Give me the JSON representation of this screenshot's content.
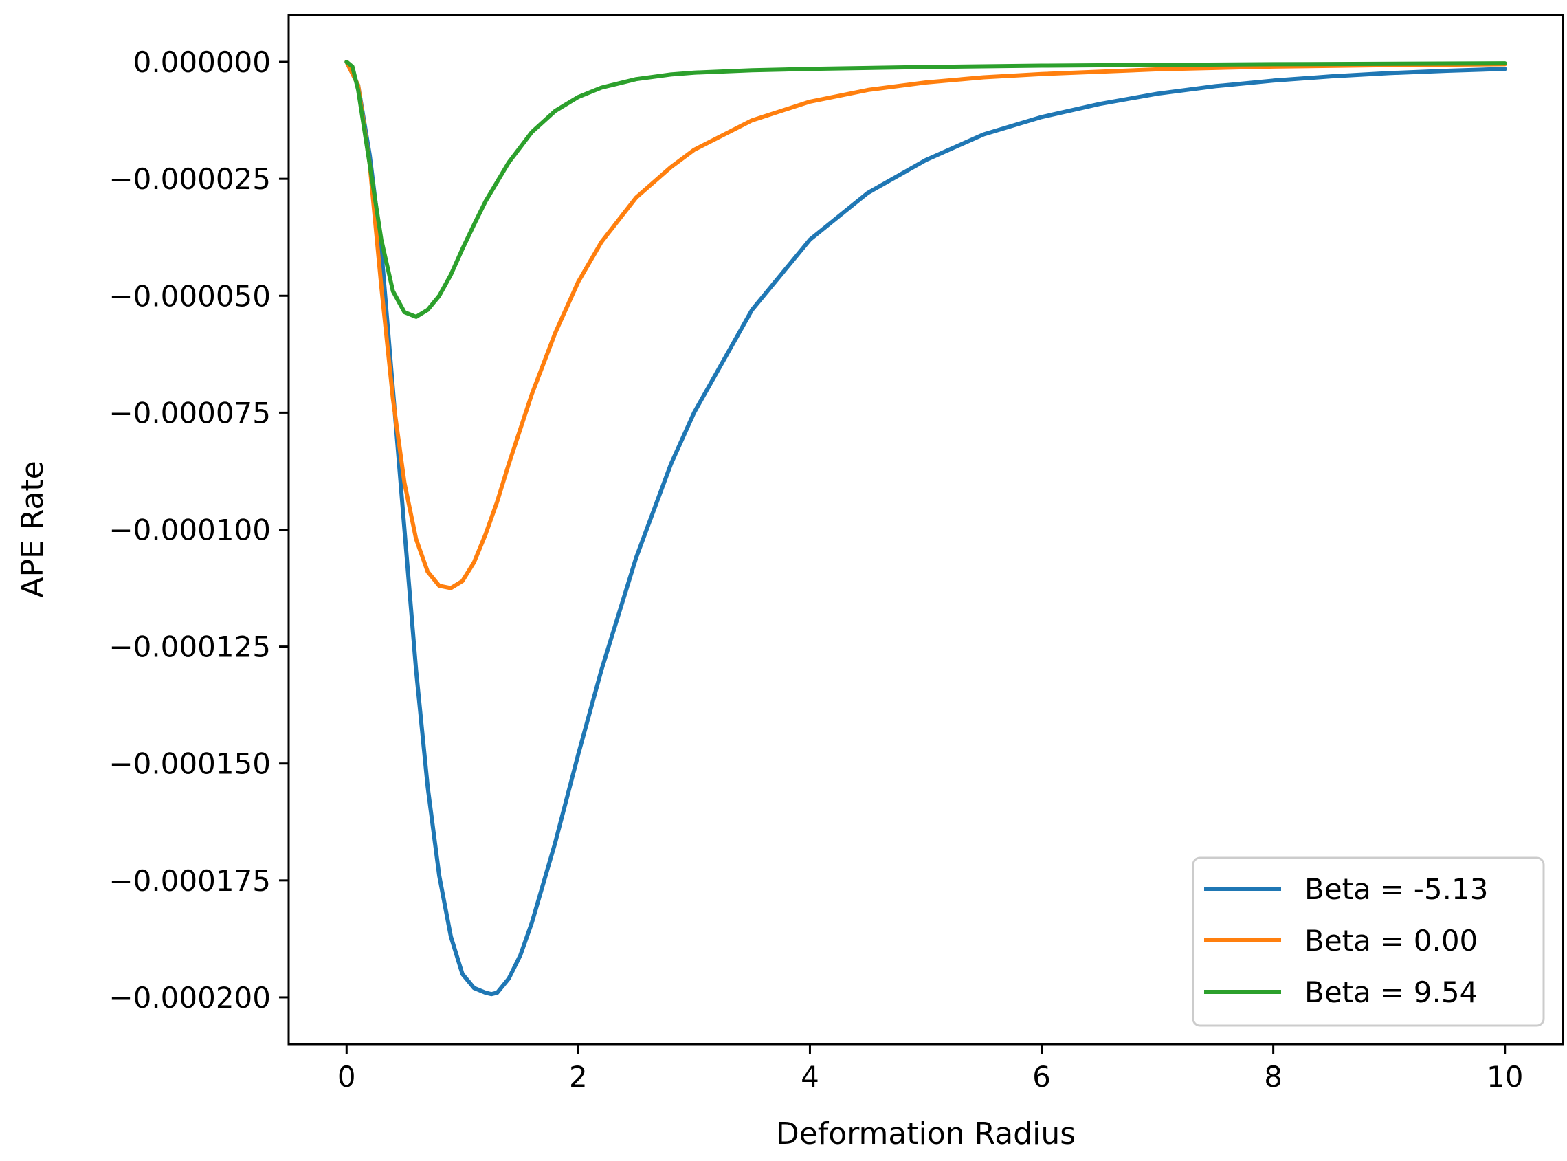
{
  "chart_data": {
    "type": "line",
    "title": "",
    "xlabel": "Deformation Radius",
    "ylabel": "APE Rate",
    "xlim": [
      -0.5,
      10.5
    ],
    "ylim": [
      -0.00021,
      1e-05
    ],
    "xticks": [
      0,
      2,
      4,
      6,
      8,
      10
    ],
    "xtick_labels": [
      "0",
      "2",
      "4",
      "6",
      "8",
      "10"
    ],
    "yticks": [
      0,
      -2.5e-05,
      -5e-05,
      -7.5e-05,
      -0.0001,
      -0.000125,
      -0.00015,
      -0.000175,
      -0.0002
    ],
    "ytick_labels": [
      "0.000000",
      "−0.000025",
      "−0.000050",
      "−0.000075",
      "−0.000100",
      "−0.000125",
      "−0.000150",
      "−0.000175",
      "−0.000200"
    ],
    "grid": false,
    "legend_position": "lower-right",
    "series": [
      {
        "name": "Beta = -5.13",
        "color": "#1f77b4",
        "x": [
          0,
          0.1,
          0.2,
          0.3,
          0.4,
          0.5,
          0.6,
          0.7,
          0.8,
          0.9,
          1.0,
          1.1,
          1.2,
          1.25,
          1.3,
          1.4,
          1.5,
          1.6,
          1.8,
          2.0,
          2.2,
          2.5,
          2.8,
          3.0,
          3.5,
          4.0,
          4.5,
          5.0,
          5.5,
          6.0,
          6.5,
          7.0,
          7.5,
          8.0,
          8.5,
          9.0,
          9.5,
          10.0
        ],
        "y": [
          0,
          -5e-06,
          -2e-05,
          -4e-05,
          -7e-05,
          -0.0001,
          -0.00013,
          -0.000155,
          -0.000174,
          -0.000187,
          -0.000195,
          -0.000198,
          -0.000199,
          -0.0001993,
          -0.000199,
          -0.000196,
          -0.000191,
          -0.000184,
          -0.000167,
          -0.000148,
          -0.00013,
          -0.000106,
          -8.6e-05,
          -7.5e-05,
          -5.3e-05,
          -3.8e-05,
          -2.8e-05,
          -2.1e-05,
          -1.55e-05,
          -1.18e-05,
          -9e-06,
          -6.8e-06,
          -5.2e-06,
          -4e-06,
          -3.1e-06,
          -2.4e-06,
          -1.9e-06,
          -1.5e-06
        ]
      },
      {
        "name": "Beta = 0.00",
        "color": "#ff7f0e",
        "x": [
          0,
          0.1,
          0.2,
          0.3,
          0.4,
          0.5,
          0.6,
          0.7,
          0.8,
          0.9,
          1.0,
          1.1,
          1.2,
          1.3,
          1.4,
          1.6,
          1.8,
          2.0,
          2.2,
          2.5,
          2.8,
          3.0,
          3.5,
          4.0,
          4.5,
          5.0,
          5.5,
          6.0,
          7.0,
          8.0,
          9.0,
          10.0
        ],
        "y": [
          0,
          -5e-06,
          -2.2e-05,
          -4.8e-05,
          -7.2e-05,
          -9e-05,
          -0.000102,
          -0.000109,
          -0.000112,
          -0.0001125,
          -0.000111,
          -0.000107,
          -0.000101,
          -9.4e-05,
          -8.6e-05,
          -7.1e-05,
          -5.8e-05,
          -4.7e-05,
          -3.85e-05,
          -2.9e-05,
          -2.25e-05,
          -1.88e-05,
          -1.25e-05,
          -8.5e-06,
          -6e-06,
          -4.4e-06,
          -3.3e-06,
          -2.6e-06,
          -1.6e-06,
          -1e-06,
          -7e-07,
          -5e-07
        ]
      },
      {
        "name": "Beta = 9.54",
        "color": "#2ca02c",
        "x": [
          0,
          0.05,
          0.1,
          0.2,
          0.3,
          0.4,
          0.5,
          0.6,
          0.7,
          0.8,
          0.9,
          1.0,
          1.1,
          1.2,
          1.4,
          1.6,
          1.8,
          2.0,
          2.2,
          2.5,
          2.8,
          3.0,
          3.5,
          4.0,
          5.0,
          6.0,
          8.0,
          10.0
        ],
        "y": [
          0,
          -1e-06,
          -6e-06,
          -2.2e-05,
          -3.8e-05,
          -4.9e-05,
          -5.35e-05,
          -5.45e-05,
          -5.3e-05,
          -5e-05,
          -4.55e-05,
          -4e-05,
          -3.48e-05,
          -2.98e-05,
          -2.15e-05,
          -1.5e-05,
          -1.05e-05,
          -7.5e-06,
          -5.5e-06,
          -3.7e-06,
          -2.7e-06,
          -2.3e-06,
          -1.8e-06,
          -1.5e-06,
          -1.1e-06,
          -8e-07,
          -5e-07,
          -3e-07
        ]
      }
    ]
  }
}
